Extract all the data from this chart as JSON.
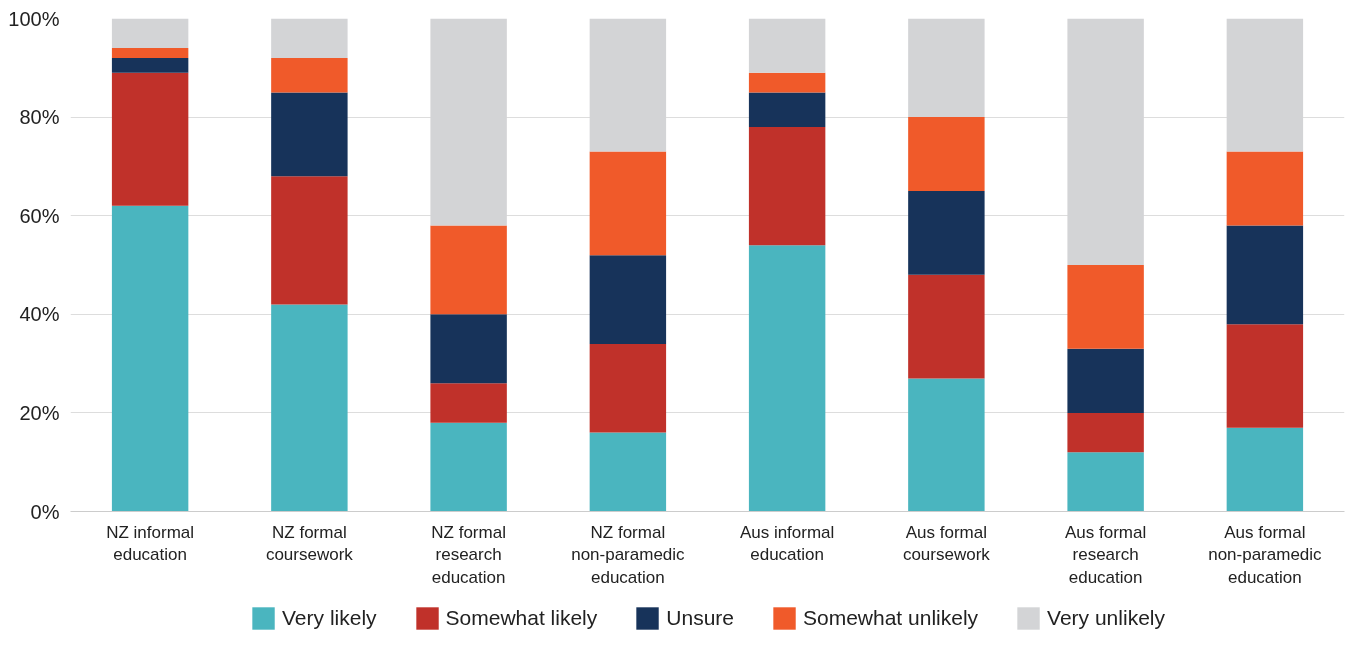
{
  "chart_data": {
    "type": "bar",
    "stacked": true,
    "categories": [
      "NZ informal education",
      "NZ formal coursework",
      "NZ formal research education",
      "NZ formal non-paramedic education",
      "Aus informal education",
      "Aus formal coursework",
      "Aus formal research education",
      "Aus formal non-paramedic education"
    ],
    "series": [
      {
        "name": "Very likely",
        "color": "#4ab5bf",
        "values": [
          62,
          42,
          18,
          16,
          54,
          27,
          12,
          17
        ]
      },
      {
        "name": "Somewhat likely",
        "color": "#c0312a",
        "values": [
          27,
          26,
          8,
          18,
          24,
          21,
          8,
          21
        ]
      },
      {
        "name": "Unsure",
        "color": "#17335a",
        "values": [
          3,
          17,
          14,
          18,
          7,
          17,
          13,
          20
        ]
      },
      {
        "name": "Somewhat unlikely",
        "color": "#f05a2a",
        "values": [
          2,
          7,
          18,
          21,
          4,
          15,
          17,
          15
        ]
      },
      {
        "name": "Very unlikely",
        "color": "#d3d4d6",
        "values": [
          6,
          8,
          42,
          27,
          11,
          20,
          50,
          27
        ]
      }
    ],
    "ylim": [
      0,
      100
    ],
    "yticks": [
      {
        "value": 0,
        "label": "0%"
      },
      {
        "value": 20,
        "label": "20%"
      },
      {
        "value": 40,
        "label": "40%"
      },
      {
        "value": 60,
        "label": "60%"
      },
      {
        "value": 80,
        "label": "80%"
      },
      {
        "value": 100,
        "label": "100%"
      }
    ],
    "grid": "y",
    "legend": "bottom"
  }
}
